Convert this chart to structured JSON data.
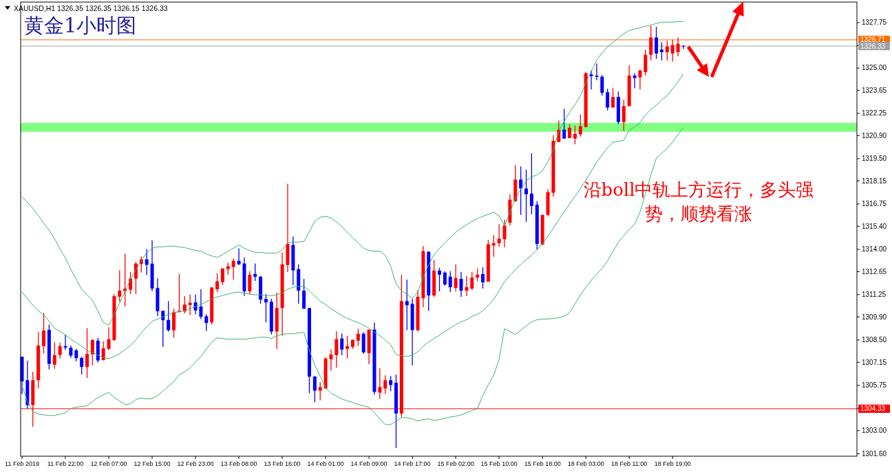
{
  "chart_data": {
    "type": "candlestick",
    "title": "黄金1小时图",
    "subtitle": "XAUUSD,H1  1326.35 1326.35 1326.15 1326.33",
    "annotations": [
      "沿boll中轨上方运行，多头强势，顺势看涨"
    ],
    "categories": [
      "11 Feb 2019",
      null,
      null,
      null,
      null,
      null,
      null,
      null,
      "11 Feb 22:00",
      null,
      null,
      null,
      null,
      null,
      null,
      null,
      "12 Feb 07:00",
      null,
      null,
      null,
      null,
      null,
      null,
      null,
      "12 Feb 15:00",
      null,
      null,
      null,
      null,
      null,
      null,
      null,
      "12 Feb 23:00",
      null,
      null,
      null,
      null,
      null,
      null,
      null,
      "13 Feb 08:00",
      null,
      null,
      null,
      null,
      null,
      null,
      null,
      "13 Feb 16:00",
      null,
      null,
      null,
      null,
      null,
      null,
      null,
      "14 Feb 01:00",
      null,
      null,
      null,
      null,
      null,
      null,
      null,
      "14 Feb 09:00",
      null,
      null,
      null,
      null,
      null,
      null,
      null,
      "14 Feb 17:00",
      null,
      null,
      null,
      null,
      null,
      null,
      null,
      "15 Feb 02:00",
      null,
      null,
      null,
      null,
      null,
      null,
      null,
      "15 Feb 10:00",
      null,
      null,
      null,
      null,
      null,
      null,
      null,
      "15 Feb 18:00",
      null,
      null,
      null,
      null,
      null,
      null,
      null,
      "18 Feb 03:00",
      null,
      null,
      null,
      null,
      null,
      null,
      null,
      "18 Feb 11:00",
      null,
      null,
      null,
      null,
      null,
      null,
      null,
      "18 Feb 19:00",
      null,
      null
    ],
    "ohlc": [
      [
        1307.49,
        1307.49,
        1305.22,
        1305.99
      ],
      [
        1306.06,
        1307.24,
        1304.34,
        1304.55
      ],
      [
        1304.55,
        1306.58,
        1303.24,
        1306.06
      ],
      [
        1306.06,
        1308.97,
        1305.57,
        1308.17
      ],
      [
        1308.13,
        1310.15,
        1307.68,
        1309.07
      ],
      [
        1309.11,
        1309.44,
        1306.71,
        1307.05
      ],
      [
        1307.0,
        1308.38,
        1306.75,
        1307.58
      ],
      [
        1307.59,
        1308.34,
        1307.38,
        1308.13
      ],
      [
        1308.13,
        1308.83,
        1307.89,
        1308.04
      ],
      [
        1308.03,
        1308.17,
        1307.42,
        1307.55
      ],
      [
        1307.87,
        1307.96,
        1307.21,
        1307.4
      ],
      [
        1307.41,
        1307.49,
        1306.41,
        1306.86
      ],
      [
        1306.86,
        1309.22,
        1306.2,
        1307.65
      ],
      [
        1307.63,
        1308.55,
        1306.96,
        1308.5
      ],
      [
        1308.46,
        1308.63,
        1307.13,
        1307.26
      ],
      [
        1307.28,
        1308.42,
        1307.26,
        1308.0
      ],
      [
        1307.96,
        1309.28,
        1307.89,
        1308.55
      ],
      [
        1308.5,
        1311.28,
        1308.45,
        1311.16
      ],
      [
        1311.13,
        1312.73,
        1310.83,
        1311.49
      ],
      [
        1311.46,
        1313.74,
        1310.54,
        1311.62
      ],
      [
        1311.55,
        1312.62,
        1311.28,
        1312.22
      ],
      [
        1312.22,
        1313.25,
        1311.28,
        1313.13
      ],
      [
        1313.11,
        1313.57,
        1312.59,
        1313.39
      ],
      [
        1313.39,
        1314.02,
        1312.43,
        1313.06
      ],
      [
        1313.13,
        1314.54,
        1311.46,
        1311.62
      ],
      [
        1311.65,
        1312.25,
        1309.95,
        1310.24
      ],
      [
        1310.27,
        1310.27,
        1308.08,
        1309.7
      ],
      [
        1309.72,
        1310.86,
        1309.01,
        1309.09
      ],
      [
        1309.09,
        1310.4,
        1308.64,
        1310.19
      ],
      [
        1310.19,
        1312.5,
        1310.19,
        1310.27
      ],
      [
        1310.23,
        1311.16,
        1310.12,
        1310.65
      ],
      [
        1310.62,
        1311.26,
        1310.0,
        1310.76
      ],
      [
        1310.78,
        1311.26,
        1310.06,
        1310.29
      ],
      [
        1310.53,
        1311.58,
        1309.77,
        1309.91
      ],
      [
        1309.94,
        1310.06,
        1309.05,
        1309.53
      ],
      [
        1309.57,
        1311.72,
        1309.43,
        1311.68
      ],
      [
        1311.58,
        1312.55,
        1311.41,
        1312.06
      ],
      [
        1312.01,
        1312.84,
        1311.83,
        1312.84
      ],
      [
        1312.8,
        1313.18,
        1312.46,
        1312.97
      ],
      [
        1312.93,
        1313.43,
        1312.17,
        1313.3
      ],
      [
        1313.3,
        1314.06,
        1313.05,
        1313.09
      ],
      [
        1313.14,
        1313.51,
        1311.17,
        1311.45
      ],
      [
        1311.45,
        1312.67,
        1311.28,
        1312.46
      ],
      [
        1312.5,
        1313.14,
        1312.08,
        1312.34
      ],
      [
        1312.34,
        1312.38,
        1310.69,
        1310.95
      ],
      [
        1310.99,
        1311.28,
        1309.56,
        1310.78
      ],
      [
        1310.82,
        1310.99,
        1308.84,
        1309.01
      ],
      [
        1309.01,
        1311.37,
        1307.96,
        1310.44
      ],
      [
        1310.44,
        1313.81,
        1308.76,
        1313.09
      ],
      [
        1313.05,
        1317.98,
        1312.63,
        1314.32
      ],
      [
        1314.27,
        1314.78,
        1311.83,
        1312.72
      ],
      [
        1312.8,
        1313.09,
        1310.69,
        1311.49
      ],
      [
        1311.49,
        1312.21,
        1310.4,
        1310.4
      ],
      [
        1310.44,
        1310.44,
        1305.27,
        1306.28
      ],
      [
        1306.28,
        1306.32,
        1304.72,
        1305.43
      ],
      [
        1305.43,
        1305.94,
        1304.84,
        1305.64
      ],
      [
        1305.56,
        1307.45,
        1305.52,
        1307.37
      ],
      [
        1307.33,
        1307.92,
        1306.65,
        1307.62
      ],
      [
        1307.58,
        1309.01,
        1306.82,
        1308.55
      ],
      [
        1308.59,
        1308.89,
        1307.58,
        1307.92
      ],
      [
        1307.96,
        1308.76,
        1307.37,
        1308.13
      ],
      [
        1308.09,
        1308.51,
        1307.96,
        1308.51
      ],
      [
        1308.46,
        1309.18,
        1308.13,
        1308.88
      ],
      [
        1308.88,
        1308.97,
        1307.66,
        1307.75
      ],
      [
        1307.7,
        1309.13,
        1307.03,
        1309.13
      ],
      [
        1309.13,
        1309.56,
        1305.18,
        1305.35
      ],
      [
        1305.31,
        1306.78,
        1304.93,
        1305.64
      ],
      [
        1305.56,
        1306.36,
        1305.22,
        1306.06
      ],
      [
        1306.06,
        1306.32,
        1305.39,
        1305.77
      ],
      [
        1305.9,
        1306.4,
        1301.95,
        1304.04
      ],
      [
        1304.04,
        1312.46,
        1303.83,
        1310.86
      ],
      [
        1310.86,
        1312.17,
        1309.1,
        1310.61
      ],
      [
        1310.69,
        1310.99,
        1306.95,
        1309.1
      ],
      [
        1309.1,
        1311.54,
        1309.01,
        1311.12
      ],
      [
        1311.03,
        1314.19,
        1310.48,
        1313.89
      ],
      [
        1313.85,
        1313.89,
        1310.27,
        1311.2
      ],
      [
        1311.2,
        1313.35,
        1311.12,
        1312.71
      ],
      [
        1312.71,
        1312.88,
        1311.45,
        1312.46
      ],
      [
        1312.59,
        1312.67,
        1311.79,
        1311.87
      ],
      [
        1312.34,
        1312.67,
        1311.41,
        1311.7
      ],
      [
        1311.66,
        1313.09,
        1311.45,
        1312.25
      ],
      [
        1312.21,
        1312.63,
        1311.12,
        1311.49
      ],
      [
        1311.49,
        1312.38,
        1311.16,
        1311.7
      ],
      [
        1311.62,
        1312.63,
        1311.54,
        1312.29
      ],
      [
        1312.29,
        1312.84,
        1312.08,
        1312.46
      ],
      [
        1312.5,
        1312.92,
        1311.62,
        1312.0
      ],
      [
        1312.04,
        1314.57,
        1312.04,
        1314.31
      ],
      [
        1314.23,
        1314.86,
        1313.55,
        1314.37
      ],
      [
        1314.37,
        1315.53,
        1314.16,
        1314.65
      ],
      [
        1314.61,
        1315.81,
        1314.12,
        1315.45
      ],
      [
        1315.62,
        1317.34,
        1315.45,
        1317.01
      ],
      [
        1316.92,
        1319.11,
        1316.88,
        1318.23
      ],
      [
        1318.23,
        1319.03,
        1316.09,
        1317.69
      ],
      [
        1317.69,
        1318.83,
        1315.67,
        1317.34
      ],
      [
        1317.38,
        1319.83,
        1316.12,
        1316.63
      ],
      [
        1316.71,
        1316.92,
        1313.99,
        1314.33
      ],
      [
        1314.3,
        1316.09,
        1314.23,
        1316.09
      ],
      [
        1316.09,
        1317.64,
        1316.01,
        1317.47
      ],
      [
        1317.43,
        1320.92,
        1317.19,
        1320.58
      ],
      [
        1320.51,
        1321.8,
        1320.51,
        1321.26
      ],
      [
        1321.26,
        1322.52,
        1320.72,
        1320.72
      ],
      [
        1320.75,
        1321.59,
        1320.75,
        1321.38
      ],
      [
        1320.72,
        1321.51,
        1320.37,
        1321.0
      ],
      [
        1320.98,
        1322.18,
        1320.84,
        1321.47
      ],
      [
        1321.43,
        1324.76,
        1321.38,
        1324.68
      ],
      [
        1324.61,
        1324.85,
        1323.7,
        1324.51
      ],
      [
        1324.54,
        1325.27,
        1324.26,
        1324.47
      ],
      [
        1324.47,
        1324.57,
        1323.32,
        1323.49
      ],
      [
        1323.53,
        1323.74,
        1322.44,
        1322.6
      ],
      [
        1322.6,
        1323.78,
        1322.6,
        1323.24
      ],
      [
        1323.24,
        1323.57,
        1321.59,
        1321.72
      ],
      [
        1321.72,
        1323.07,
        1321.19,
        1322.69
      ],
      [
        1322.69,
        1325.17,
        1322.65,
        1324.54
      ],
      [
        1324.54,
        1324.68,
        1323.77,
        1324.39
      ],
      [
        1324.43,
        1324.89,
        1323.7,
        1324.85
      ],
      [
        1324.75,
        1326.1,
        1324.54,
        1325.8
      ],
      [
        1325.8,
        1327.57,
        1325.46,
        1326.85
      ],
      [
        1326.85,
        1327.5,
        1325.55,
        1325.88
      ],
      [
        1326.12,
        1326.56,
        1325.46,
        1325.96
      ],
      [
        1325.96,
        1326.64,
        1325.46,
        1326.3
      ],
      [
        1325.88,
        1326.72,
        1325.38,
        1326.39
      ],
      [
        1325.96,
        1326.85,
        1325.71,
        1326.47
      ],
      [
        1326.35,
        1326.35,
        1326.15,
        1326.33
      ]
    ],
    "colors": [
      "#0000ff",
      "#0000ff",
      "#ff0000",
      "#ff0000",
      "#ff0000",
      "#0000ff",
      "#ff0000",
      "#ff0000",
      "#0000ff",
      "#0000ff",
      "#0000ff",
      "#0000ff",
      "#ff0000",
      "#ff0000",
      "#0000ff",
      "#ff0000",
      "#ff0000",
      "#ff0000",
      "#ff0000",
      "#ff0000",
      "#ff0000",
      "#ff0000",
      "#ff0000",
      "#0000ff",
      "#0000ff",
      "#0000ff",
      "#0000ff",
      "#0000ff",
      "#ff0000",
      "#ff0000",
      "#ff0000",
      "#ff0000",
      "#0000ff",
      "#0000ff",
      "#0000ff",
      "#ff0000",
      "#ff0000",
      "#ff0000",
      "#ff0000",
      "#ff0000",
      "#0000ff",
      "#0000ff",
      "#ff0000",
      "#0000ff",
      "#0000ff",
      "#0000ff",
      "#0000ff",
      "#ff0000",
      "#ff0000",
      "#ff0000",
      "#0000ff",
      "#0000ff",
      "#0000ff",
      "#0000ff",
      "#0000ff",
      "#ff0000",
      "#ff0000",
      "#ff0000",
      "#ff0000",
      "#0000ff",
      "#ff0000",
      "#ff0000",
      "#ff0000",
      "#0000ff",
      "#ff0000",
      "#0000ff",
      "#ff0000",
      "#ff0000",
      "#0000ff",
      "#0000ff",
      "#ff0000",
      "#0000ff",
      "#0000ff",
      "#ff0000",
      "#ff0000",
      "#0000ff",
      "#ff0000",
      "#0000ff",
      "#0000ff",
      "#0000ff",
      "#ff0000",
      "#0000ff",
      "#ff0000",
      "#ff0000",
      "#ff0000",
      "#0000ff",
      "#ff0000",
      "#ff0000",
      "#ff0000",
      "#ff0000",
      "#ff0000",
      "#ff0000",
      "#0000ff",
      "#0000ff",
      "#0000ff",
      "#0000ff",
      "#ff0000",
      "#ff0000",
      "#ff0000",
      "#ff0000",
      "#0000ff",
      "#ff0000",
      "#ff0000",
      "#ff0000",
      "#ff0000",
      "#0000ff",
      "#0000ff",
      "#0000ff",
      "#0000ff",
      "#ff0000",
      "#0000ff",
      "#ff0000",
      "#ff0000",
      "#0000ff",
      "#ff0000",
      "#ff0000",
      "#ff0000",
      "#0000ff",
      "#0000ff",
      "#ff0000",
      "#ff0000",
      "#ff0000",
      "#0000ff"
    ],
    "series": [
      {
        "type": "line",
        "color": "#3cb371",
        "values": [
          1317.18,
          1316.84,
          1316.5,
          1316.04,
          1315.58,
          1315.16,
          1314.65,
          1314.02,
          1313.47,
          1312.8,
          1312.17,
          1311.58,
          1311.24,
          1310.9,
          1310.27,
          1309.56,
          1309.39,
          1310.02,
          1310.74,
          1311.45,
          1312.17,
          1312.76,
          1313.3,
          1313.81,
          1314.06,
          1314.15,
          1314.15,
          1314.19,
          1314.19,
          1314.15,
          1314.1,
          1314.02,
          1313.93,
          1313.89,
          1313.72,
          1313.6,
          1313.51,
          1313.68,
          1313.89,
          1314.06,
          1314.27,
          1314.06,
          1313.93,
          1313.81,
          1313.81,
          1313.77,
          1313.77,
          1313.77,
          1313.98,
          1314.4,
          1314.44,
          1314.44,
          1314.48,
          1315.07,
          1315.7,
          1315.95,
          1316.0,
          1315.91,
          1315.66,
          1315.37,
          1315.03,
          1314.69,
          1314.4,
          1314.06,
          1313.93,
          1313.89,
          1313.89,
          1313.64,
          1312.97,
          1311.91,
          1311.49,
          1311.28,
          1311.03,
          1311.41,
          1312.29,
          1313.05,
          1313.68,
          1314.06,
          1314.4,
          1314.73,
          1315.03,
          1315.28,
          1315.49,
          1315.7,
          1315.87,
          1316.0,
          1316.12,
          1316.25,
          1316.04,
          1315.41,
          1316.25,
          1317.09,
          1317.64,
          1318.14,
          1318.4,
          1318.52,
          1318.77,
          1319.32,
          1320.04,
          1321.17,
          1321.76,
          1322.31,
          1322.77,
          1323.32,
          1324.12,
          1324.79,
          1325.47,
          1325.93,
          1326.27,
          1326.56,
          1326.81,
          1327.07,
          1327.28,
          1327.36,
          1327.44,
          1327.53,
          1327.61,
          1327.7,
          1327.78,
          1327.78,
          1327.78,
          1327.82,
          1327.82
        ]
      },
      {
        "type": "line",
        "color": "#3cb371",
        "values": [
          1311.41,
          1310.99,
          1310.61,
          1310.27,
          1310.02,
          1309.64,
          1309.22,
          1309.01,
          1308.8,
          1308.55,
          1308.34,
          1308.13,
          1307.87,
          1307.75,
          1307.58,
          1307.45,
          1307.37,
          1307.5,
          1307.66,
          1307.92,
          1308.17,
          1308.51,
          1308.93,
          1309.3,
          1309.64,
          1309.77,
          1309.89,
          1310.06,
          1310.15,
          1310.23,
          1310.27,
          1310.4,
          1310.53,
          1310.65,
          1310.82,
          1310.99,
          1311.11,
          1311.2,
          1311.28,
          1311.37,
          1311.41,
          1311.33,
          1311.28,
          1311.24,
          1311.24,
          1311.2,
          1311.2,
          1311.24,
          1311.37,
          1311.58,
          1311.7,
          1311.75,
          1311.75,
          1311.49,
          1311.16,
          1310.86,
          1310.65,
          1310.4,
          1310.19,
          1309.98,
          1309.81,
          1309.68,
          1309.56,
          1309.39,
          1309.22,
          1308.97,
          1308.76,
          1308.51,
          1308.21,
          1307.62,
          1307.54,
          1307.5,
          1307.58,
          1307.79,
          1308.13,
          1308.38,
          1308.59,
          1308.8,
          1309.01,
          1309.22,
          1309.43,
          1309.6,
          1309.73,
          1309.94,
          1310.06,
          1310.27,
          1310.61,
          1310.95,
          1311.49,
          1312.04,
          1312.42,
          1312.76,
          1313.09,
          1313.39,
          1313.64,
          1313.98,
          1314.36,
          1314.78,
          1315.28,
          1315.79,
          1316.29,
          1316.75,
          1317.22,
          1317.68,
          1318.19,
          1318.73,
          1319.28,
          1319.74,
          1320.16,
          1320.5,
          1320.54,
          1320.63,
          1321.22,
          1321.43,
          1321.68,
          1322.14,
          1322.48,
          1322.73,
          1323.07,
          1323.32,
          1323.74,
          1324.16,
          1324.63
        ]
      },
      {
        "type": "line",
        "color": "#3cb371",
        "values": [
          1305.73,
          1304.76,
          1304.17,
          1304.0,
          1303.96,
          1303.92,
          1303.92,
          1304.0,
          1304.09,
          1304.34,
          1304.42,
          1304.46,
          1304.51,
          1304.76,
          1305.01,
          1305.18,
          1305.31,
          1305.01,
          1304.8,
          1304.59,
          1304.63,
          1304.89,
          1304.97,
          1304.93,
          1304.93,
          1305.14,
          1305.39,
          1305.69,
          1305.98,
          1306.4,
          1306.57,
          1306.82,
          1307.16,
          1307.5,
          1307.96,
          1308.38,
          1308.63,
          1308.59,
          1308.55,
          1308.55,
          1308.55,
          1308.55,
          1308.59,
          1308.63,
          1308.67,
          1308.67,
          1308.59,
          1308.76,
          1308.84,
          1308.88,
          1308.88,
          1308.93,
          1308.97,
          1307.87,
          1306.99,
          1306.32,
          1305.6,
          1305.26,
          1305.1,
          1304.93,
          1304.8,
          1304.72,
          1304.59,
          1304.51,
          1304.42,
          1304.09,
          1303.71,
          1303.37,
          1303.37,
          1303.58,
          1303.79,
          1303.79,
          1303.71,
          1303.58,
          1303.67,
          1303.71,
          1303.62,
          1303.67,
          1303.75,
          1303.83,
          1303.88,
          1303.96,
          1304.09,
          1304.21,
          1304.34,
          1305.14,
          1305.77,
          1306.36,
          1307.33,
          1309.18,
          1309.01,
          1308.84,
          1309.09,
          1309.35,
          1309.6,
          1309.73,
          1309.77,
          1309.77,
          1309.81,
          1309.85,
          1309.94,
          1310.15,
          1310.69,
          1311.24,
          1311.7,
          1312.12,
          1312.5,
          1312.84,
          1313.3,
          1313.85,
          1314.44,
          1314.82,
          1315.2,
          1315.53,
          1316.25,
          1317.39,
          1318.52,
          1319.53,
          1319.83,
          1320.12,
          1320.5,
          1320.96,
          1321.38
        ]
      }
    ],
    "ylim": [
      1301.45,
      1329.0
    ],
    "yticks": [
      {
        "value": 1301.6,
        "label": "1301.60"
      },
      {
        "value": 1303.0,
        "label": "1303.00"
      },
      {
        "value": 1304.35,
        "label": null
      },
      {
        "value": 1305.75,
        "label": "1305.75"
      },
      {
        "value": 1307.15,
        "label": "1307.15"
      },
      {
        "value": 1308.5,
        "label": "1308.50"
      },
      {
        "value": 1309.9,
        "label": "1309.90"
      },
      {
        "value": 1311.25,
        "label": "1311.25"
      },
      {
        "value": 1312.65,
        "label": "1312.65"
      },
      {
        "value": 1314.0,
        "label": "1314.00"
      },
      {
        "value": 1315.4,
        "label": "1315.40"
      },
      {
        "value": 1316.75,
        "label": "1316.75"
      },
      {
        "value": 1318.15,
        "label": "1318.15"
      },
      {
        "value": 1319.5,
        "label": "1319.50"
      },
      {
        "value": 1320.9,
        "label": "1320.90"
      },
      {
        "value": 1322.25,
        "label": "1322.25"
      },
      {
        "value": 1323.65,
        "label": "1323.65"
      },
      {
        "value": 1325.0,
        "label": "1325.00"
      },
      {
        "value": 1326.35,
        "label": null
      },
      {
        "value": 1327.75,
        "label": "1327.75"
      }
    ],
    "ref_lines": [
      {
        "axis": "y",
        "value": 1326.71,
        "label": "1326.71",
        "color": "#ff6a00"
      },
      {
        "axis": "y",
        "value": 1326.33,
        "label": "1326.33",
        "color": "#a0a0a0"
      },
      {
        "axis": "y",
        "value": 1304.33,
        "label": "1304.33",
        "color": "#ff0000"
      }
    ],
    "bands": [
      {
        "axis": "y",
        "from": 1321.13,
        "to": 1321.67,
        "color": "#80ff80"
      }
    ]
  }
}
